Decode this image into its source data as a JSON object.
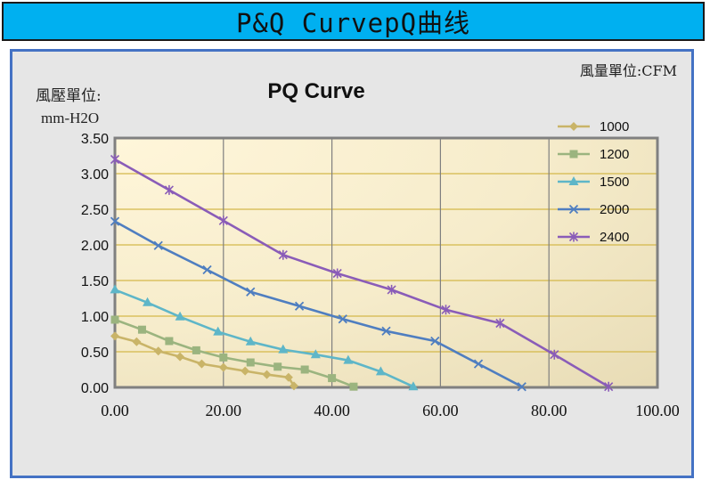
{
  "banner": {
    "title": "P&Q  CurvepQ曲线"
  },
  "chart_data": {
    "type": "line",
    "title": "PQ Curve",
    "ylabel_line1": "風壓單位:",
    "ylabel_line2": "mm-H2O",
    "xlabel": "風量單位:CFM",
    "xlim": [
      0,
      100
    ],
    "ylim": [
      0,
      3.5
    ],
    "xticks": [
      "0.00",
      "20.00",
      "40.00",
      "60.00",
      "80.00",
      "100.00"
    ],
    "yticks": [
      "0.00",
      "0.50",
      "1.00",
      "1.50",
      "2.00",
      "2.50",
      "3.00",
      "3.50"
    ],
    "grid": true,
    "legend_position": "top-right",
    "series": [
      {
        "name": "1000",
        "color": "#c9b468",
        "marker": "diamond",
        "points": [
          [
            0,
            0.72
          ],
          [
            4,
            0.64
          ],
          [
            8,
            0.51
          ],
          [
            12,
            0.43
          ],
          [
            16,
            0.33
          ],
          [
            20,
            0.28
          ],
          [
            24,
            0.23
          ],
          [
            28,
            0.18
          ],
          [
            32,
            0.14
          ],
          [
            33,
            0.02
          ]
        ]
      },
      {
        "name": "1200",
        "color": "#9bb47f",
        "marker": "square",
        "points": [
          [
            0,
            0.95
          ],
          [
            5,
            0.81
          ],
          [
            10,
            0.65
          ],
          [
            15,
            0.52
          ],
          [
            20,
            0.42
          ],
          [
            25,
            0.35
          ],
          [
            30,
            0.29
          ],
          [
            35,
            0.25
          ],
          [
            40,
            0.13
          ],
          [
            44,
            0.01
          ]
        ]
      },
      {
        "name": "1500",
        "color": "#5eb6c8",
        "marker": "triangle",
        "points": [
          [
            0,
            1.37
          ],
          [
            6,
            1.19
          ],
          [
            12,
            0.99
          ],
          [
            19,
            0.78
          ],
          [
            25,
            0.64
          ],
          [
            31,
            0.53
          ],
          [
            37,
            0.46
          ],
          [
            43,
            0.38
          ],
          [
            49,
            0.22
          ],
          [
            55,
            0.01
          ]
        ]
      },
      {
        "name": "2000",
        "color": "#4f7ec0",
        "marker": "x",
        "points": [
          [
            0,
            2.33
          ],
          [
            8,
            1.99
          ],
          [
            17,
            1.65
          ],
          [
            25,
            1.34
          ],
          [
            34,
            1.14
          ],
          [
            42,
            0.96
          ],
          [
            50,
            0.79
          ],
          [
            59,
            0.65
          ],
          [
            67,
            0.33
          ],
          [
            75,
            0.01
          ]
        ]
      },
      {
        "name": "2400",
        "color": "#8a5cb8",
        "marker": "star",
        "points": [
          [
            0,
            3.2
          ],
          [
            10,
            2.77
          ],
          [
            20,
            2.34
          ],
          [
            31,
            1.86
          ],
          [
            41,
            1.6
          ],
          [
            51,
            1.37
          ],
          [
            61,
            1.09
          ],
          [
            71,
            0.9
          ],
          [
            81,
            0.46
          ],
          [
            91,
            0.01
          ]
        ]
      }
    ]
  }
}
